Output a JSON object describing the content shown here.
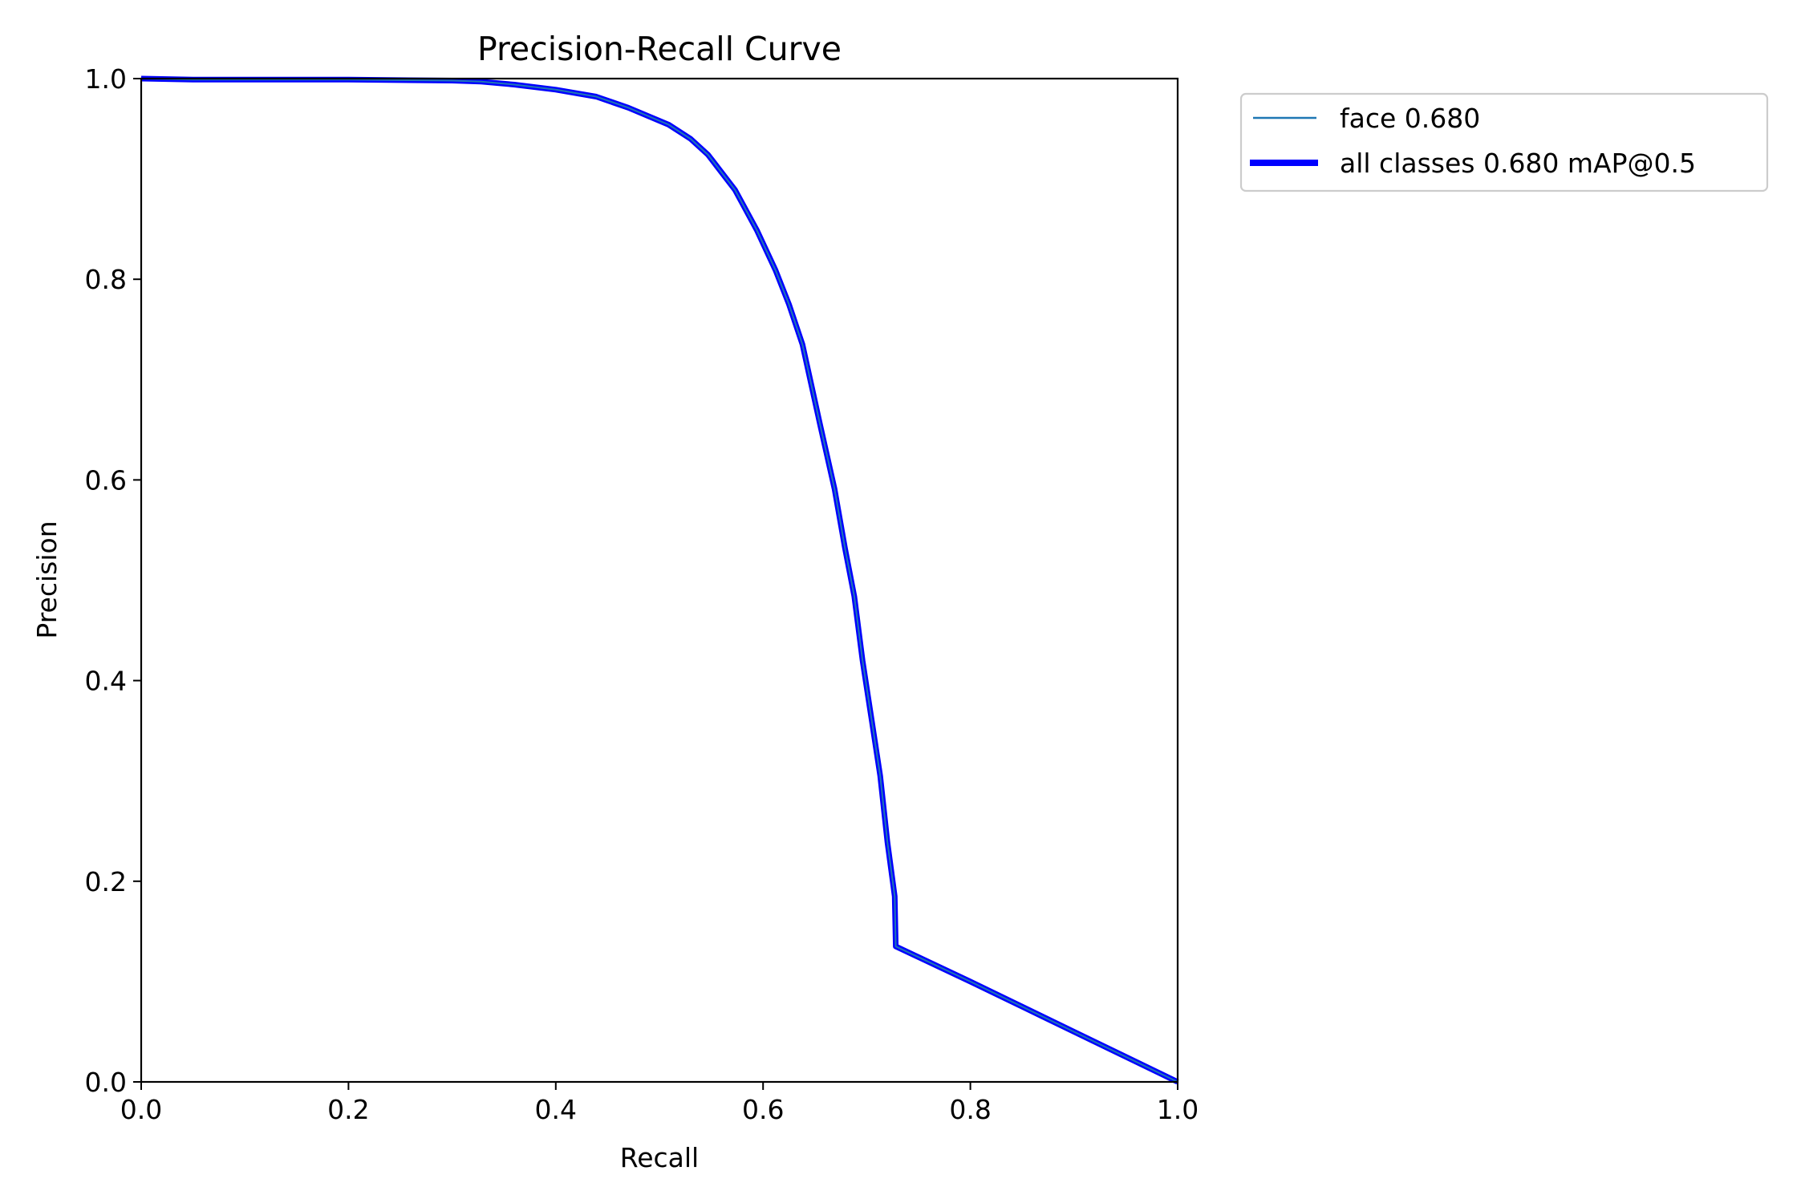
{
  "chart_data": {
    "type": "line",
    "title": "Precision-Recall Curve",
    "xlabel": "Recall",
    "ylabel": "Precision",
    "xlim": [
      0.0,
      1.0
    ],
    "ylim": [
      0.0,
      1.0
    ],
    "xticks": [
      "0.0",
      "0.2",
      "0.4",
      "0.6",
      "0.8",
      "1.0"
    ],
    "yticks": [
      "0.0",
      "0.2",
      "0.4",
      "0.6",
      "0.8",
      "1.0"
    ],
    "grid": false,
    "legend_position": "outside upper right",
    "series": [
      {
        "name": "face 0.680",
        "color": "#1f77b4",
        "linewidth": 1,
        "x": [
          0.0,
          0.05,
          0.1,
          0.2,
          0.3,
          0.328,
          0.36,
          0.4,
          0.439,
          0.47,
          0.509,
          0.53,
          0.547,
          0.573,
          0.594,
          0.612,
          0.625,
          0.638,
          0.655,
          0.669,
          0.679,
          0.688,
          0.696,
          0.705,
          0.713,
          0.72,
          0.727,
          0.728,
          0.8,
          0.9,
          1.0
        ],
        "y": [
          1.0,
          0.999,
          0.999,
          0.999,
          0.998,
          0.997,
          0.994,
          0.989,
          0.982,
          0.971,
          0.954,
          0.94,
          0.924,
          0.889,
          0.849,
          0.809,
          0.775,
          0.735,
          0.655,
          0.591,
          0.532,
          0.484,
          0.42,
          0.359,
          0.305,
          0.239,
          0.185,
          0.135,
          0.1,
          0.05,
          0.0
        ]
      },
      {
        "name": "all classes 0.680 mAP@0.5",
        "color": "#0000ff",
        "linewidth": 3,
        "x": [
          0.0,
          0.05,
          0.1,
          0.2,
          0.3,
          0.328,
          0.36,
          0.4,
          0.439,
          0.47,
          0.509,
          0.53,
          0.547,
          0.573,
          0.594,
          0.612,
          0.625,
          0.638,
          0.655,
          0.669,
          0.679,
          0.688,
          0.696,
          0.705,
          0.713,
          0.72,
          0.727,
          0.728,
          0.8,
          0.9,
          1.0
        ],
        "y": [
          1.0,
          0.999,
          0.999,
          0.999,
          0.998,
          0.997,
          0.994,
          0.989,
          0.982,
          0.971,
          0.954,
          0.94,
          0.924,
          0.889,
          0.849,
          0.809,
          0.775,
          0.735,
          0.655,
          0.591,
          0.532,
          0.484,
          0.42,
          0.359,
          0.305,
          0.239,
          0.185,
          0.135,
          0.1,
          0.05,
          0.0
        ]
      }
    ]
  },
  "legend": {
    "items": [
      {
        "label": "face 0.680",
        "color": "#1f77b4"
      },
      {
        "label": "all classes 0.680 mAP@0.5",
        "color": "#0000ff"
      }
    ]
  }
}
